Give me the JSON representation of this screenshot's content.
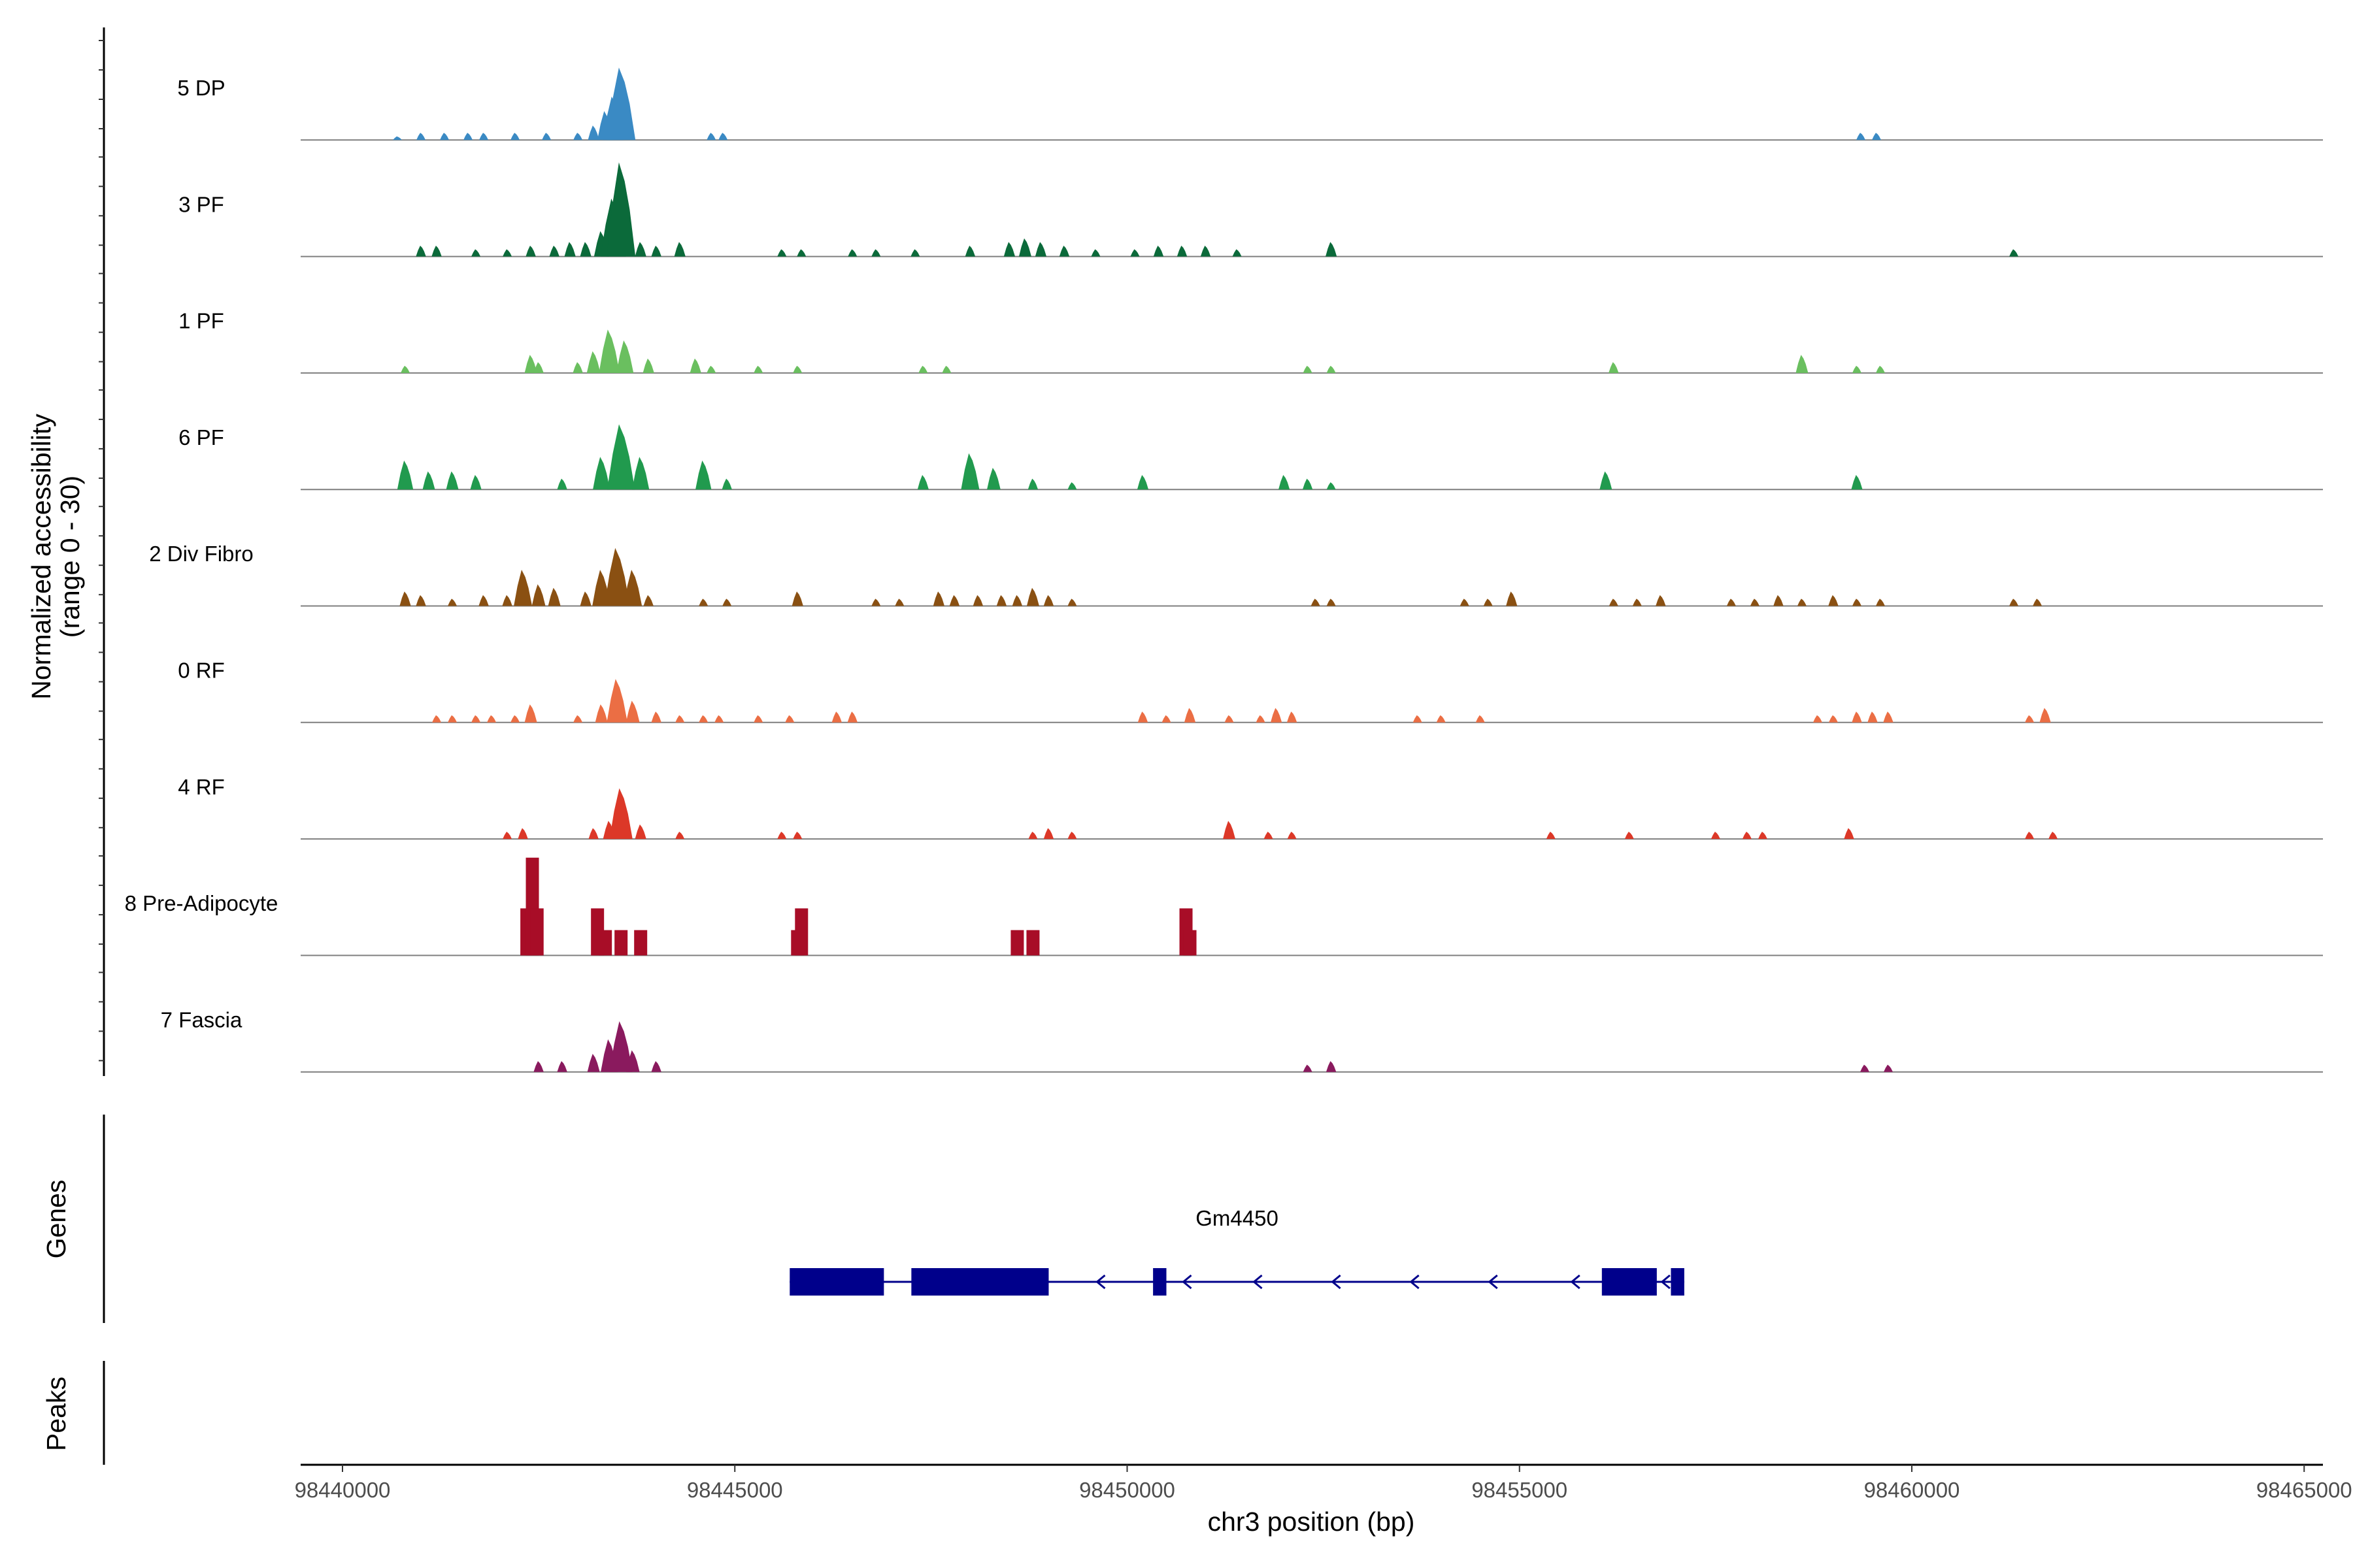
{
  "chart_data": {
    "type": "coverage",
    "title": "",
    "ylabel_line1": "Normalized accessibility",
    "ylabel_line2": "(range 0 - 30)",
    "xlabel": "chr3 position (bp)",
    "genes_label": "Genes",
    "peaks_label": "Peaks",
    "ylim": [
      0,
      30
    ],
    "xlim": [
      98439500,
      98465000
    ],
    "x_ticks": [
      98440000,
      98445000,
      98450000,
      98455000,
      98460000,
      98465000
    ],
    "x_tick_labels": [
      "98440000",
      "98445000",
      "98450000",
      "98455000",
      "98460000",
      "98465000"
    ],
    "tracks": [
      {
        "name": "5 DP",
        "color": "#3A8AC4",
        "peaks": [
          [
            98440700,
            1
          ],
          [
            98441000,
            2
          ],
          [
            98441300,
            2
          ],
          [
            98441600,
            2
          ],
          [
            98441800,
            2
          ],
          [
            98442200,
            2
          ],
          [
            98442600,
            2
          ],
          [
            98443000,
            2
          ],
          [
            98443200,
            4
          ],
          [
            98443350,
            8
          ],
          [
            98443450,
            12
          ],
          [
            98443550,
            20
          ],
          [
            98444700,
            2
          ],
          [
            98444850,
            2
          ],
          [
            98459350,
            2
          ],
          [
            98459550,
            2
          ]
        ]
      },
      {
        "name": "3 PF",
        "color": "#0B6A3A",
        "peaks": [
          [
            98441000,
            3
          ],
          [
            98441200,
            3
          ],
          [
            98441700,
            2
          ],
          [
            98442100,
            2
          ],
          [
            98442400,
            3
          ],
          [
            98442700,
            3
          ],
          [
            98442900,
            4
          ],
          [
            98443100,
            4
          ],
          [
            98443300,
            7
          ],
          [
            98443450,
            16
          ],
          [
            98443550,
            26
          ],
          [
            98443800,
            4
          ],
          [
            98444000,
            3
          ],
          [
            98444300,
            4
          ],
          [
            98445600,
            2
          ],
          [
            98445850,
            2
          ],
          [
            98446500,
            2
          ],
          [
            98446800,
            2
          ],
          [
            98447300,
            2
          ],
          [
            98448000,
            3
          ],
          [
            98448500,
            4
          ],
          [
            98448700,
            5
          ],
          [
            98448900,
            4
          ],
          [
            98449200,
            3
          ],
          [
            98449600,
            2
          ],
          [
            98450100,
            2
          ],
          [
            98450400,
            3
          ],
          [
            98450700,
            3
          ],
          [
            98451000,
            3
          ],
          [
            98451400,
            2
          ],
          [
            98452600,
            4
          ],
          [
            98461300,
            2
          ]
        ]
      },
      {
        "name": "1 PF",
        "color": "#6ABF5F",
        "peaks": [
          [
            98440800,
            2
          ],
          [
            98442400,
            5
          ],
          [
            98442500,
            3
          ],
          [
            98443000,
            3
          ],
          [
            98443200,
            6
          ],
          [
            98443400,
            12
          ],
          [
            98443600,
            9
          ],
          [
            98443900,
            4
          ],
          [
            98444500,
            4
          ],
          [
            98444700,
            2
          ],
          [
            98445300,
            2
          ],
          [
            98445800,
            2
          ],
          [
            98447400,
            2
          ],
          [
            98447700,
            2
          ],
          [
            98452300,
            2
          ],
          [
            98452600,
            2
          ],
          [
            98456200,
            3
          ],
          [
            98458600,
            5
          ],
          [
            98459300,
            2
          ],
          [
            98459600,
            2
          ]
        ]
      },
      {
        "name": "6 PF",
        "color": "#219A4E",
        "peaks": [
          [
            98440800,
            8
          ],
          [
            98441100,
            5
          ],
          [
            98441400,
            5
          ],
          [
            98441700,
            4
          ],
          [
            98442800,
            3
          ],
          [
            98443300,
            9
          ],
          [
            98443550,
            18
          ],
          [
            98443800,
            9
          ],
          [
            98444600,
            8
          ],
          [
            98444900,
            3
          ],
          [
            98447400,
            4
          ],
          [
            98448000,
            10
          ],
          [
            98448300,
            6
          ],
          [
            98448800,
            3
          ],
          [
            98449300,
            2
          ],
          [
            98450200,
            4
          ],
          [
            98452000,
            4
          ],
          [
            98452300,
            3
          ],
          [
            98452600,
            2
          ],
          [
            98456100,
            5
          ],
          [
            98459300,
            4
          ]
        ]
      },
      {
        "name": "2 Div Fibro",
        "color": "#8A5012",
        "peaks": [
          [
            98440800,
            4
          ],
          [
            98441000,
            3
          ],
          [
            98441400,
            2
          ],
          [
            98441800,
            3
          ],
          [
            98442100,
            3
          ],
          [
            98442300,
            10
          ],
          [
            98442500,
            6
          ],
          [
            98442700,
            5
          ],
          [
            98443100,
            4
          ],
          [
            98443300,
            10
          ],
          [
            98443500,
            16
          ],
          [
            98443700,
            10
          ],
          [
            98443900,
            3
          ],
          [
            98444600,
            2
          ],
          [
            98444900,
            2
          ],
          [
            98445800,
            4
          ],
          [
            98446800,
            2
          ],
          [
            98447100,
            2
          ],
          [
            98447600,
            4
          ],
          [
            98447800,
            3
          ],
          [
            98448100,
            3
          ],
          [
            98448400,
            3
          ],
          [
            98448600,
            3
          ],
          [
            98448800,
            5
          ],
          [
            98449000,
            3
          ],
          [
            98449300,
            2
          ],
          [
            98452400,
            2
          ],
          [
            98452600,
            2
          ],
          [
            98454300,
            2
          ],
          [
            98454600,
            2
          ],
          [
            98454900,
            4
          ],
          [
            98456200,
            2
          ],
          [
            98456500,
            2
          ],
          [
            98456800,
            3
          ],
          [
            98457700,
            2
          ],
          [
            98458000,
            2
          ],
          [
            98458300,
            3
          ],
          [
            98458600,
            2
          ],
          [
            98459000,
            3
          ],
          [
            98459300,
            2
          ],
          [
            98459600,
            2
          ],
          [
            98461300,
            2
          ],
          [
            98461600,
            2
          ]
        ]
      },
      {
        "name": "0 RF",
        "color": "#EB6E44",
        "peaks": [
          [
            98441200,
            2
          ],
          [
            98441400,
            2
          ],
          [
            98441700,
            2
          ],
          [
            98441900,
            2
          ],
          [
            98442200,
            2
          ],
          [
            98442400,
            5
          ],
          [
            98443000,
            2
          ],
          [
            98443300,
            5
          ],
          [
            98443500,
            12
          ],
          [
            98443700,
            6
          ],
          [
            98444000,
            3
          ],
          [
            98444300,
            2
          ],
          [
            98444600,
            2
          ],
          [
            98444800,
            2
          ],
          [
            98445300,
            2
          ],
          [
            98445700,
            2
          ],
          [
            98446300,
            3
          ],
          [
            98446500,
            3
          ],
          [
            98450200,
            3
          ],
          [
            98450500,
            2
          ],
          [
            98450800,
            4
          ],
          [
            98451300,
            2
          ],
          [
            98451700,
            2
          ],
          [
            98451900,
            4
          ],
          [
            98452100,
            3
          ],
          [
            98453700,
            2
          ],
          [
            98454000,
            2
          ],
          [
            98454500,
            2
          ],
          [
            98458800,
            2
          ],
          [
            98459000,
            2
          ],
          [
            98459300,
            3
          ],
          [
            98459500,
            3
          ],
          [
            98459700,
            3
          ],
          [
            98461500,
            2
          ],
          [
            98461700,
            4
          ]
        ]
      },
      {
        "name": "4 RF",
        "color": "#DC3828",
        "peaks": [
          [
            98442100,
            2
          ],
          [
            98442300,
            3
          ],
          [
            98443200,
            3
          ],
          [
            98443400,
            5
          ],
          [
            98443550,
            14
          ],
          [
            98443800,
            4
          ],
          [
            98444300,
            2
          ],
          [
            98445600,
            2
          ],
          [
            98445800,
            2
          ],
          [
            98448800,
            2
          ],
          [
            98449000,
            3
          ],
          [
            98449300,
            2
          ],
          [
            98451300,
            5
          ],
          [
            98451800,
            2
          ],
          [
            98452100,
            2
          ],
          [
            98455400,
            2
          ],
          [
            98456400,
            2
          ],
          [
            98457500,
            2
          ],
          [
            98457900,
            2
          ],
          [
            98458100,
            2
          ],
          [
            98459200,
            3
          ],
          [
            98461500,
            2
          ],
          [
            98461800,
            2
          ]
        ]
      },
      {
        "name": "8 Pre-Adipocyte",
        "color": "#A80D27",
        "peaks": [
          [
            98442350,
            13
          ],
          [
            98442420,
            27
          ],
          [
            98442480,
            13
          ],
          [
            98443250,
            13
          ],
          [
            98443350,
            7
          ],
          [
            98443550,
            7
          ],
          [
            98443800,
            7
          ],
          [
            98445800,
            7
          ],
          [
            98445850,
            13
          ],
          [
            98448600,
            7
          ],
          [
            98448800,
            7
          ],
          [
            98450750,
            13
          ],
          [
            98450800,
            7
          ]
        ]
      },
      {
        "name": "7 Fascia",
        "color": "#8A1A5E",
        "peaks": [
          [
            98442500,
            3
          ],
          [
            98442800,
            3
          ],
          [
            98443200,
            5
          ],
          [
            98443400,
            9
          ],
          [
            98443550,
            14
          ],
          [
            98443700,
            6
          ],
          [
            98444000,
            3
          ],
          [
            98452300,
            2
          ],
          [
            98452600,
            3
          ],
          [
            98459400,
            2
          ],
          [
            98459700,
            2
          ]
        ]
      }
    ],
    "gene": {
      "name": "Gm4450",
      "strand": "-",
      "start": 98445700,
      "end": 98457100,
      "color": "#00008B",
      "exons": [
        [
          98445700,
          98446900
        ],
        [
          98447250,
          98449000
        ],
        [
          98450330,
          98450500
        ],
        [
          98456050,
          98456750
        ],
        [
          98456930,
          98457100
        ]
      ],
      "arrows_at": [
        98449650,
        98450750,
        98451650,
        98452650,
        98453650,
        98454650,
        98455700,
        98456850
      ]
    }
  }
}
